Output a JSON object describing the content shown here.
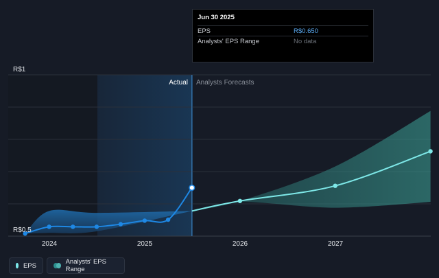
{
  "chart_data": {
    "type": "line",
    "y_unit_labels": {
      "top": "R$1",
      "bottom": "R$0.5"
    },
    "ylim": [
      0.5,
      1.0
    ],
    "x_ticks": [
      "2024",
      "2025",
      "2026",
      "2027"
    ],
    "region_labels": {
      "actual": "Actual",
      "forecast": "Analysts Forecasts"
    },
    "series": [
      {
        "name": "EPS",
        "color": "#1e88e5",
        "points": [
          {
            "x": "2023-09-30",
            "y": 0.508
          },
          {
            "x": "2023-12-31",
            "y": 0.529
          },
          {
            "x": "2024-03-31",
            "y": 0.529
          },
          {
            "x": "2024-06-30",
            "y": 0.529
          },
          {
            "x": "2024-09-30",
            "y": 0.537
          },
          {
            "x": "2024-12-31",
            "y": 0.548
          },
          {
            "x": "2025-03-31",
            "y": 0.551
          },
          {
            "x": "2025-06-30",
            "y": 0.65
          }
        ]
      },
      {
        "name": "EPS Forecast",
        "color": "#7ee8e8",
        "points": [
          {
            "x": "2025-06-30",
            "y": 0.578
          },
          {
            "x": "2025-12-31",
            "y": 0.609
          },
          {
            "x": "2026-12-31",
            "y": 0.656
          },
          {
            "x": "2027-12-31",
            "y": 0.763
          }
        ]
      }
    ],
    "range_band": {
      "name": "Analysts' EPS Range",
      "actual_upper": [
        {
          "x": "2023-09-30",
          "y": 0.508
        },
        {
          "x": "2023-12-31",
          "y": 0.578
        },
        {
          "x": "2024-06-30",
          "y": 0.572
        },
        {
          "x": "2025-06-30",
          "y": 0.578
        }
      ],
      "actual_lower": [
        {
          "x": "2023-09-30",
          "y": 0.508
        },
        {
          "x": "2023-12-31",
          "y": 0.51
        },
        {
          "x": "2024-06-30",
          "y": 0.515
        },
        {
          "x": "2025-06-30",
          "y": 0.578
        }
      ],
      "forecast_upper": [
        {
          "x": "2025-06-30",
          "y": 0.578
        },
        {
          "x": "2025-12-31",
          "y": 0.609
        },
        {
          "x": "2026-12-31",
          "y": 0.716
        },
        {
          "x": "2027-12-31",
          "y": 0.888
        }
      ],
      "forecast_lower": [
        {
          "x": "2025-06-30",
          "y": 0.578
        },
        {
          "x": "2025-12-31",
          "y": 0.606
        },
        {
          "x": "2026-12-31",
          "y": 0.588
        },
        {
          "x": "2027-12-31",
          "y": 0.606
        }
      ]
    },
    "grid": true
  },
  "tooltip": {
    "date": "Jun 30 2025",
    "rows": [
      {
        "key": "EPS",
        "value": "R$0.650"
      },
      {
        "key": "Analysts' EPS Range",
        "value": "No data"
      }
    ]
  },
  "legend": {
    "items": [
      {
        "label": "EPS",
        "color": "#1e88e5"
      },
      {
        "label": "Analysts' EPS Range",
        "color": "#2d8f8f"
      }
    ]
  }
}
